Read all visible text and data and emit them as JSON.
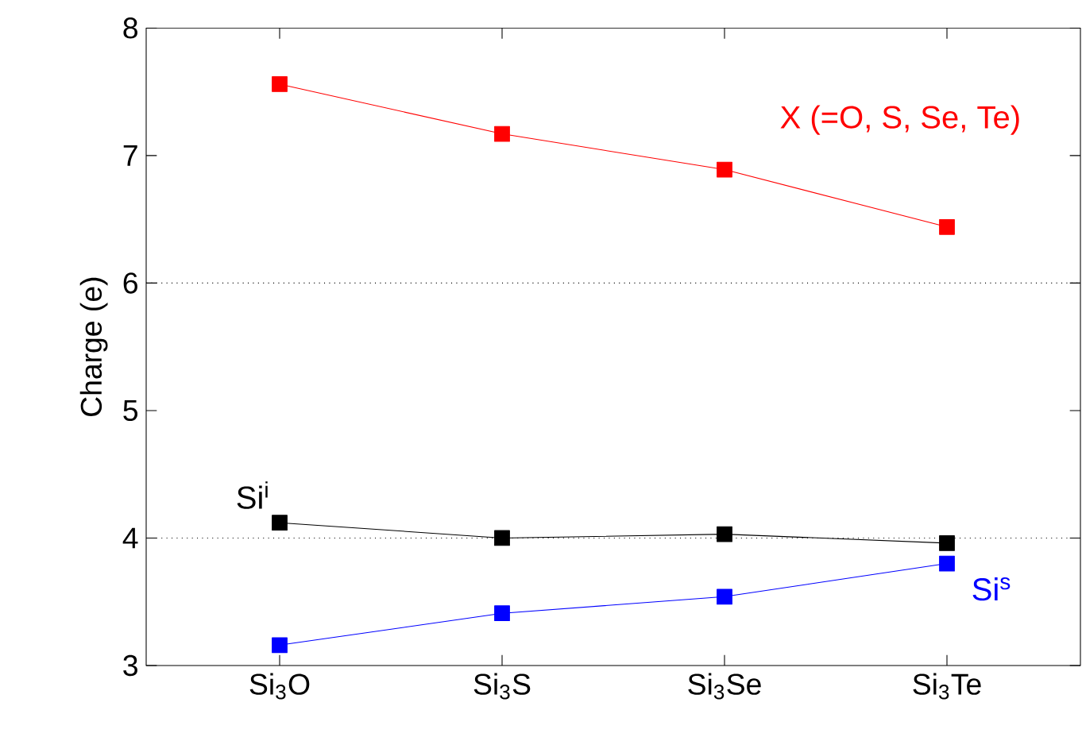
{
  "chart_data": {
    "type": "line",
    "ylabel": "Charge (e)",
    "categories": [
      "Si$_{3}$O",
      "Si$_{3}$S",
      "Si$_{3}$Se",
      "Si$_{3}$Te"
    ],
    "series": [
      {
        "name": "X (=O, S, Se, Te)",
        "color": "#ff0000",
        "values": [
          7.56,
          7.17,
          6.89,
          6.44
        ]
      },
      {
        "name": "Si$^{i}$",
        "color": "#000000",
        "values": [
          4.12,
          4.0,
          4.03,
          3.96
        ]
      },
      {
        "name": "Si$^{s}$",
        "color": "#0000ff",
        "values": [
          3.16,
          3.41,
          3.54,
          3.8
        ]
      }
    ],
    "ylim": [
      3,
      8
    ],
    "yticks": [
      3,
      4,
      5,
      6,
      7,
      8
    ],
    "ref_lines": [
      {
        "axis": "y",
        "value": 6,
        "color": "#000000",
        "line_style": "dotted"
      },
      {
        "axis": "y",
        "value": 4,
        "color": "#000000",
        "line_style": "dotted"
      }
    ],
    "marker": "square",
    "line_style": "solid"
  }
}
